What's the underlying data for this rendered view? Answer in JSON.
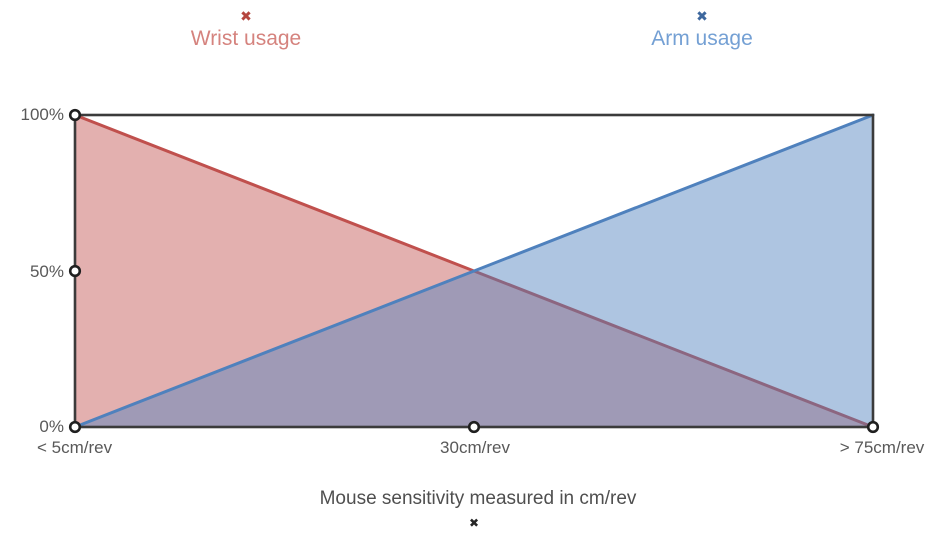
{
  "legend": {
    "items": [
      {
        "label": "Wrist usage",
        "marker_glyph": "✖",
        "marker_color": "#b5463f",
        "text_color": "#d5837e"
      },
      {
        "label": "Arm usage",
        "marker_glyph": "✖",
        "marker_color": "#3e689e",
        "text_color": "#74a0d4"
      }
    ]
  },
  "axis_title": {
    "text": "Mouse sensitivity measured in cm/rev",
    "marker_glyph": "✖"
  },
  "chart_data": {
    "type": "area",
    "title": "",
    "xlabel": "Mouse sensitivity measured in cm/rev",
    "ylabel": "",
    "ylim": [
      0,
      100
    ],
    "xlim": [
      0,
      100
    ],
    "grid": false,
    "legend_position": "top",
    "x_tick_labels": [
      "< 5cm/rev",
      "30cm/rev",
      "> 75cm/rev"
    ],
    "x_tick_positions": [
      0,
      50,
      100
    ],
    "y_tick_labels": [
      "0%",
      "50%",
      "100%"
    ],
    "y_tick_positions": [
      0,
      50,
      100
    ],
    "series": [
      {
        "name": "Wrist usage",
        "points": [
          {
            "x": 0,
            "y": 100
          },
          {
            "x": 100,
            "y": 0
          }
        ],
        "line_color": "#c0504d",
        "fill_color": "rgba(192,80,77,0.45)"
      },
      {
        "name": "Arm usage",
        "points": [
          {
            "x": 0,
            "y": 0
          },
          {
            "x": 100,
            "y": 100
          }
        ],
        "line_color": "#4f81bd",
        "fill_color": "rgba(79,129,189,0.46)"
      }
    ],
    "point_markers": [
      {
        "x": 0,
        "y": 100
      },
      {
        "x": 0,
        "y": 50
      },
      {
        "x": 0,
        "y": 0
      },
      {
        "x": 50,
        "y": 0
      },
      {
        "x": 100,
        "y": 0
      }
    ],
    "frame_color": "#3b3b3b",
    "marker_stroke_color": "#1f1f1f",
    "marker_fill_color": "#ffffff"
  }
}
